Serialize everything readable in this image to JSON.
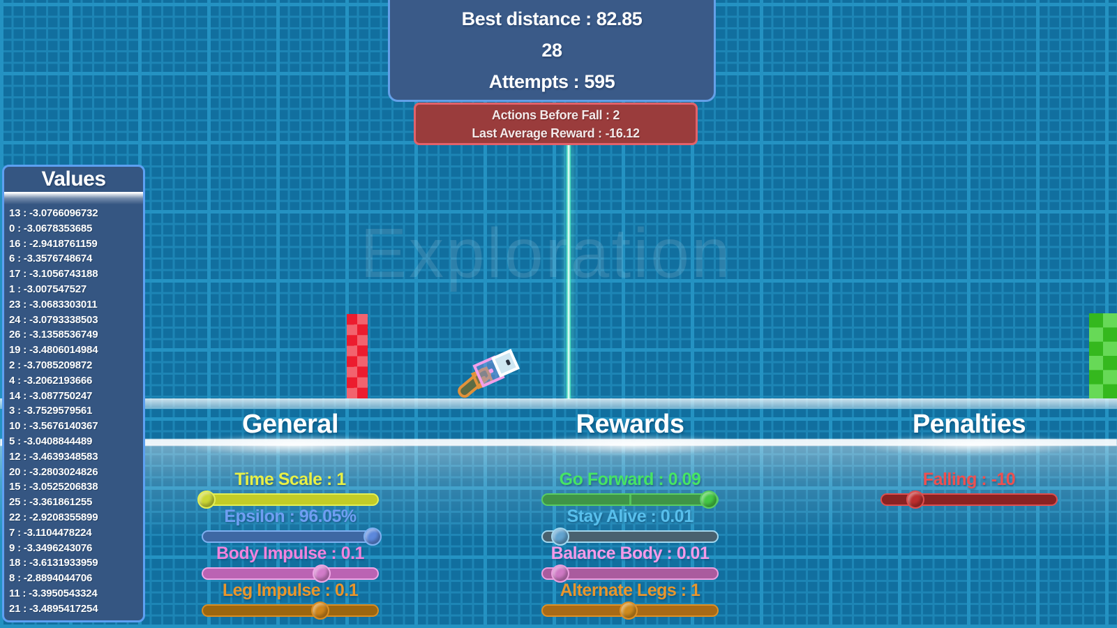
{
  "colors": {
    "grid_bg": "#116f9f",
    "grid_minor": "#1d85b5",
    "grid_major": "#2492c2",
    "stats_fill": "#3a5a88",
    "stats_border": "#64a0e8",
    "warning_fill": "#9a3c3c",
    "warning_border": "#e2626a",
    "values_fill": "#355682",
    "values_border": "#5da0f2",
    "beam": "#7df5d5",
    "red_pillar_light": "#f2636e",
    "red_pillar_dark": "#ec1c2e",
    "green_pillar_light": "#67d957",
    "green_pillar_dark": "#35b81e",
    "walker_orange": "#e2923a",
    "walker_pink": "#f2a0ea",
    "walker_leg_fill": "#5c6b44",
    "walker_head_fill": "#cfe7f2"
  },
  "watermark": "Exploration",
  "stats_panel": {
    "best_distance": "Best distance : 82.85",
    "episode": "28",
    "attempts": "Attempts : 595"
  },
  "warning_panel": {
    "actions_before_fall": "Actions Before Fall : 2",
    "last_average_reward": "Last Average Reward : -16.12"
  },
  "values_panel": {
    "title": "Values",
    "items": [
      "13 : -3.0766096732",
      "0 : -3.0678353685",
      "16 : -2.9418761159",
      "6 : -3.3576748674",
      "17 : -3.1056743188",
      "1 : -3.007547527",
      "23 : -3.0683303011",
      "24 : -3.0793338503",
      "26 : -3.1358536749",
      "19 : -3.4806014984",
      "2 : -3.7085209872",
      "4 : -3.2062193666",
      "14 : -3.087750247",
      "3 : -3.7529579561",
      "10 : -3.5676140367",
      "5 : -3.0408844489",
      "12 : -3.4639348583",
      "20 : -3.2803024826",
      "15 : -3.0525206838",
      "25 : -3.361861255",
      "22 : -2.9208355899",
      "7 : -3.1104478224",
      "9 : -3.3496243076",
      "18 : -3.6131933959",
      "8 : -2.8894044706",
      "11 : -3.3950543324",
      "21 : -3.4895417254"
    ]
  },
  "sections": [
    {
      "name": "general",
      "title": "General",
      "sliders": [
        {
          "name": "time-scale",
          "label": "Time Scale : 1",
          "label_color": "#e8f046",
          "track_fill": "#c3cc27",
          "track_border": "#e4ef55",
          "knob_color": "#cbd735",
          "fraction": 0.02
        },
        {
          "name": "epsilon",
          "label": "Epsilon : 96.05%",
          "label_color": "#6f9ef2",
          "track_fill": "#3e68a4",
          "track_border": "#7fb0f0",
          "knob_color": "#5c88dc",
          "fraction": 0.97
        },
        {
          "name": "body-impulse",
          "label": "Body Impulse : 0.1",
          "label_color": "#f083dd",
          "track_fill": "#bb63b3",
          "track_border": "#f0a6e6",
          "knob_color": "#d27cc9",
          "fraction": 0.68
        },
        {
          "name": "leg-impulse",
          "label": "Leg Impulse : 0.1",
          "label_color": "#e9962c",
          "track_fill": "#9c660f",
          "track_border": "#da8d22",
          "knob_color": "#cf861c",
          "fraction": 0.67
        }
      ]
    },
    {
      "name": "rewards",
      "title": "Rewards",
      "sliders": [
        {
          "name": "go-forward",
          "label": "Go Forward : 0.09",
          "label_color": "#46e464",
          "track_fill": "#3f9447",
          "track_border": "#59cd62",
          "knob_color": "#45c845",
          "fraction": 0.95,
          "mid_tick": true
        },
        {
          "name": "stay-alive",
          "label": "Stay Alive : 0.01",
          "label_color": "#58bfec",
          "track_fill": "#49616f",
          "track_border": "#a3d7ee",
          "knob_color": "#62a3cf",
          "fraction": 0.1
        },
        {
          "name": "balance-body",
          "label": "Balance Body : 0.01",
          "label_color": "#f49ae8",
          "track_fill": "#aa5b9e",
          "track_border": "#ec9fdf",
          "knob_color": "#cf79c4",
          "fraction": 0.1
        },
        {
          "name": "alternate-legs",
          "label": "Alternate Legs : 1",
          "label_color": "#e9962c",
          "track_fill": "#a96a16",
          "track_border": "#df9025",
          "knob_color": "#cf8b1f",
          "fraction": 0.49
        }
      ]
    },
    {
      "name": "penalties",
      "title": "Penalties",
      "sliders": [
        {
          "name": "falling",
          "label": "Falling : -10",
          "label_color": "#ee5050",
          "track_fill": "#8a2222",
          "track_border": "#dd4f4f",
          "knob_color": "#bd2e2e",
          "fraction": 0.19
        }
      ]
    }
  ]
}
